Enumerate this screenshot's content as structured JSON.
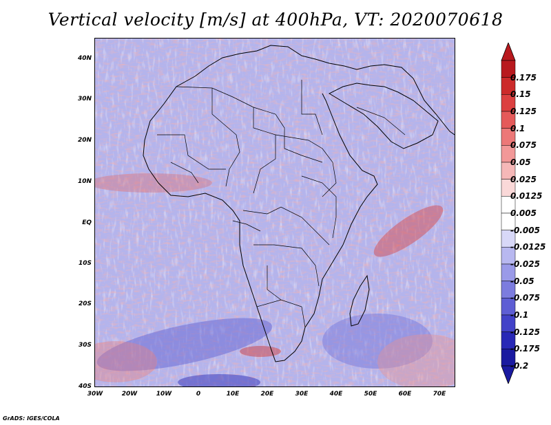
{
  "title": "Vertical velocity [m/s] at 400hPa, VT: 2020070618",
  "footer": "GrADS: IGES/COLA",
  "map": {
    "region": "Africa",
    "lat_range": [
      -40,
      45
    ],
    "lon_range": [
      -30,
      75
    ],
    "lat_labels": [
      "40N",
      "30N",
      "20N",
      "10N",
      "EQ",
      "10S",
      "20S",
      "30S",
      "40S"
    ],
    "lon_labels": [
      "30W",
      "20W",
      "10W",
      "0",
      "10E",
      "20E",
      "30E",
      "40E",
      "50E",
      "60E",
      "70E"
    ]
  },
  "colorbar": {
    "levels": [
      "0.175",
      "0.15",
      "0.125",
      "0.1",
      "0.075",
      "0.05",
      "0.025",
      "0.0125",
      "0.005",
      "-0.005",
      "-0.0125",
      "-0.025",
      "-0.05",
      "-0.075",
      "-0.1",
      "-0.125",
      "-0.175",
      "-0.2"
    ],
    "colors": [
      "#b8191e",
      "#cc2a2a",
      "#dc4040",
      "#e55a5a",
      "#ec7878",
      "#f29898",
      "#f6b8b8",
      "#fad8d8",
      "#ffffff",
      "#ffffff",
      "#d8d8f8",
      "#b8b8f0",
      "#9a9ae8",
      "#7c7cde",
      "#5e5ed4",
      "#4242c8",
      "#2828b6",
      "#1a1aa0"
    ]
  }
}
